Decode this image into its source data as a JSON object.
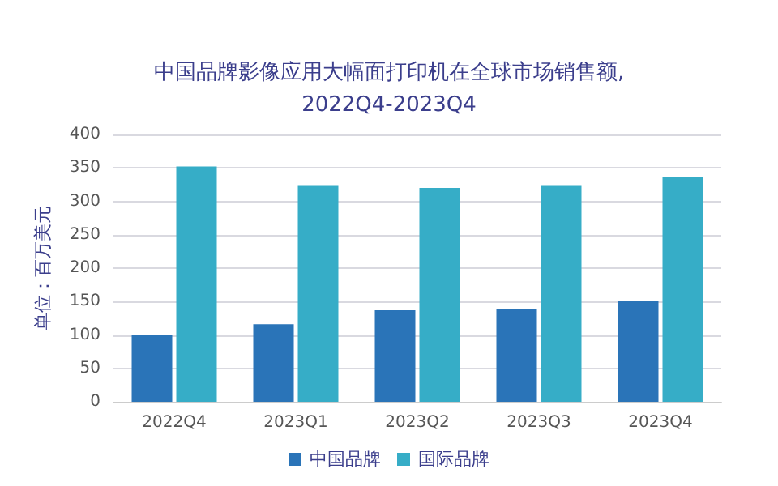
{
  "chart_data": {
    "type": "bar",
    "title": "中国品牌影像应用大幅面打印机在全球市场销售额,\n2022Q4-2023Q4",
    "ylabel": "单位：百万美元",
    "categories": [
      "2022Q4",
      "2023Q1",
      "2023Q2",
      "2023Q3",
      "2023Q4"
    ],
    "series": [
      {
        "name": "中国品牌",
        "color": "#2a74b8",
        "values": [
          100,
          116,
          137,
          139,
          151
        ]
      },
      {
        "name": "国际品牌",
        "color": "#36adc7",
        "values": [
          352,
          323,
          320,
          323,
          337
        ]
      }
    ],
    "ylim": [
      0,
      400
    ],
    "yticks": [
      0,
      50,
      100,
      150,
      200,
      250,
      300,
      350,
      400
    ],
    "grid": "y",
    "legend": "bottom"
  }
}
